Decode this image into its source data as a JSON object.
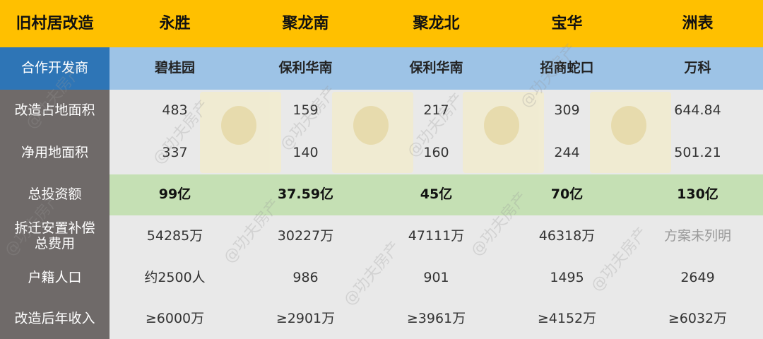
{
  "header": {
    "corner": "旧村居改造",
    "columns": [
      "永胜",
      "聚龙南",
      "聚龙北",
      "宝华",
      "洲表"
    ]
  },
  "rows": [
    {
      "label": "合作开发商",
      "values": [
        "碧桂园",
        "保利华南",
        "保利华南",
        "招商蛇口",
        "万科"
      ]
    },
    {
      "label": "改造占地面积",
      "values": [
        "483",
        "159",
        "217",
        "309",
        "644.84"
      ]
    },
    {
      "label": "净用地面积",
      "values": [
        "337",
        "140",
        "160",
        "244",
        "501.21"
      ]
    },
    {
      "label": "总投资额",
      "values": [
        "99亿",
        "37.59亿",
        "45亿",
        "70亿",
        "130亿"
      ]
    },
    {
      "label": "拆迁安置补偿\n总费用",
      "values": [
        "54285万",
        "30227万",
        "47111万",
        "46318万",
        "方案未列明"
      ]
    },
    {
      "label": "户籍人口",
      "values": [
        "约2500人",
        "986",
        "901",
        "1495",
        "2649"
      ]
    },
    {
      "label": "改造后年收入",
      "values": [
        "≥6000万",
        "≥2901万",
        "≥3961万",
        "≥4152万",
        "≥6032万"
      ]
    }
  ],
  "watermark": "@功夫房产",
  "colors": {
    "header": "#ffc000",
    "developer_label": "#2e75b6",
    "developer_row": "#9dc3e6",
    "label_column": "#6f6a69",
    "investment_row": "#c5e0b4",
    "body": "#e9e9e9"
  }
}
